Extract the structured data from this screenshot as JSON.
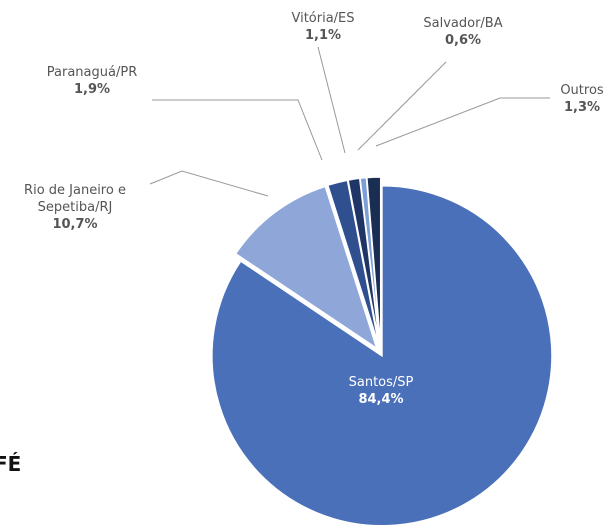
{
  "fragment": "FÉ",
  "chart_data": {
    "type": "pie",
    "categories": [
      "Santos/SP",
      "Rio de Janeiro e Sepetiba/RJ",
      "Paranaguá/PR",
      "Vitória/ES",
      "Salvador/BA",
      "Outros"
    ],
    "values": [
      84.4,
      10.7,
      1.9,
      1.1,
      0.6,
      1.3
    ],
    "value_labels": [
      "84,4%",
      "10,7%",
      "1,9%",
      "1,1%",
      "0,6%",
      "1,3%"
    ],
    "colors": [
      "#4a70b9",
      "#8ea7d8",
      "#2f4f8f",
      "#1f3566",
      "#7e9ed6",
      "#1a2d52"
    ]
  }
}
